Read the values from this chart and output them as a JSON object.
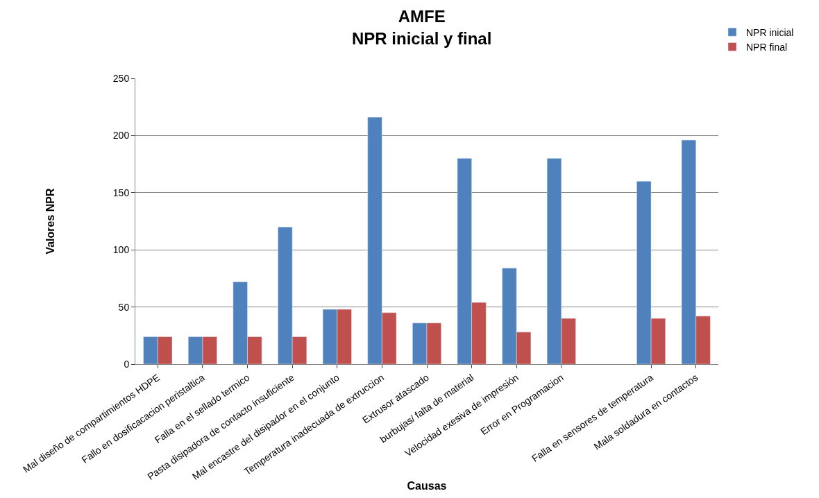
{
  "chart_data": {
    "type": "bar",
    "title": "AMFE\nNPR inicial y final",
    "xlabel": "Causas",
    "ylabel": "Valores NPR",
    "categories": [
      "Mal diseño de compartimientos HDPE",
      "Fallo en dosificacacion peristaltica",
      "Falla en el sellado termico",
      "Pasta disipadora de contacto insuficiente",
      "Mal encastre del disipador en el conjunto",
      "Temperatura inadecuada de extruccion",
      "Extrusor atascado",
      "burbujas/ falta de material",
      "Velocidad exesiva de impresión",
      "Error en Programacion",
      null,
      "Falla en sensores de temperatura",
      "Mala soldadura en contactos"
    ],
    "series": [
      {
        "name": "NPR inicial",
        "color": "#4f81bd",
        "values": [
          24,
          24,
          72,
          120,
          48,
          216,
          36,
          180,
          84,
          180,
          null,
          160,
          196
        ]
      },
      {
        "name": "NPR final",
        "color": "#c0504d",
        "values": [
          24,
          24,
          24,
          24,
          48,
          45,
          36,
          54,
          28,
          40,
          null,
          40,
          42
        ]
      }
    ],
    "ylim": [
      0,
      250
    ],
    "yticks": [
      0,
      50,
      100,
      150,
      200,
      250
    ],
    "grid": "y",
    "legend": "top right"
  }
}
